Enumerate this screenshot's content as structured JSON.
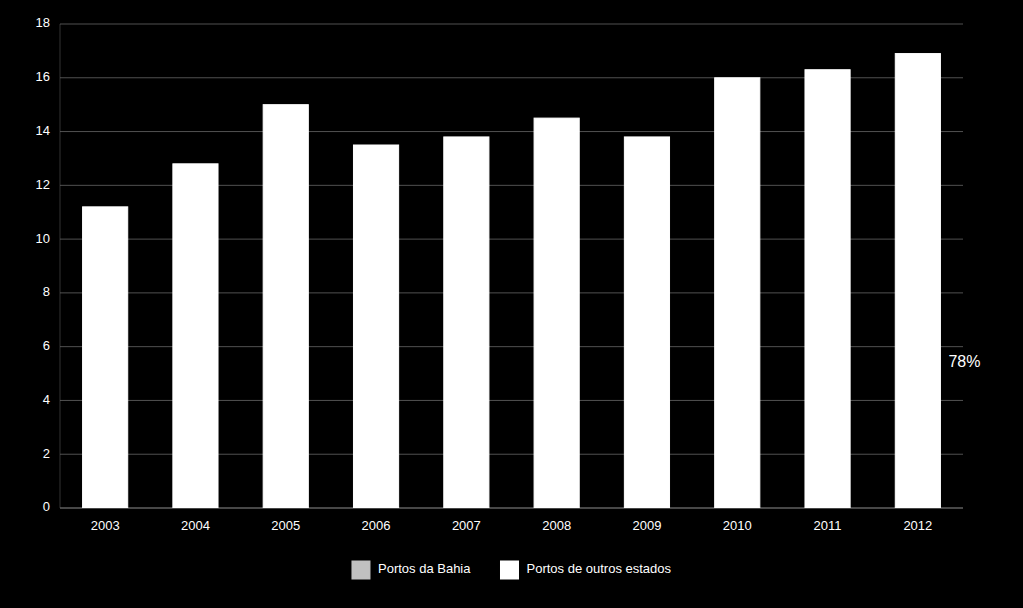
{
  "chart_data": {
    "type": "bar",
    "categories": [
      "2003",
      "2004",
      "2005",
      "2006",
      "2007",
      "2008",
      "2009",
      "2010",
      "2011",
      "2012"
    ],
    "series": [
      {
        "name": "Portos da Bahia",
        "color": "#c0c0c0",
        "values": [
          null,
          null,
          null,
          null,
          null,
          null,
          null,
          null,
          null,
          null
        ]
      },
      {
        "name": "Portos de outros estados",
        "color": "#ffffff",
        "values": [
          11.2,
          12.8,
          15.0,
          13.5,
          13.8,
          14.5,
          13.8,
          16.0,
          16.3,
          16.9
        ]
      }
    ],
    "stacked": true,
    "ylim": [
      0,
      18
    ],
    "yticks": [
      0,
      2,
      4,
      6,
      8,
      10,
      12,
      14,
      16,
      18
    ],
    "grid": true,
    "legend": "bottom",
    "annotations": [
      "78%"
    ]
  }
}
